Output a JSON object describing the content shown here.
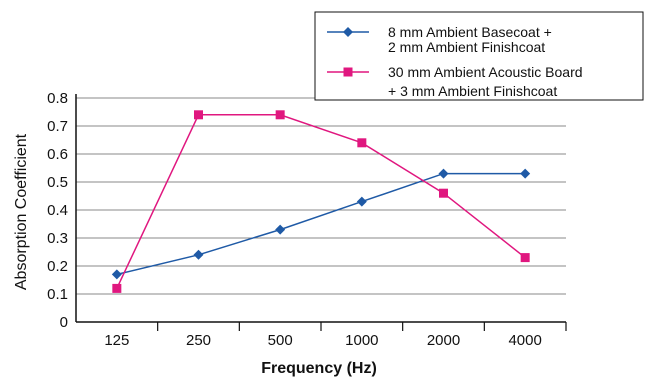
{
  "chart_data": {
    "type": "line",
    "title": "",
    "xlabel": "Frequency (Hz)",
    "ylabel": "Absorption Coefficient",
    "categories": [
      "125",
      "250",
      "500",
      "1000",
      "2000",
      "4000"
    ],
    "ylim": [
      0,
      0.8
    ],
    "yticks": [
      "0",
      "0.1",
      "0.2",
      "0.3",
      "0.4",
      "0.5",
      "0.6",
      "0.7",
      "0.8"
    ],
    "grid": true,
    "legend_position": "top-right",
    "series": [
      {
        "name_lines": [
          "8 mm Ambient Basecoat +",
          "2 mm Ambient Finishcoat"
        ],
        "color": "#1f5aa6",
        "marker": "diamond",
        "values": [
          0.17,
          0.24,
          0.33,
          0.43,
          0.53,
          0.53
        ]
      },
      {
        "name_lines": [
          "30 mm Ambient Acoustic Board",
          "+ 3 mm Ambient Finishcoat"
        ],
        "color": "#e0177f",
        "marker": "square",
        "values": [
          0.12,
          0.74,
          0.74,
          0.64,
          0.46,
          0.23
        ]
      }
    ]
  }
}
